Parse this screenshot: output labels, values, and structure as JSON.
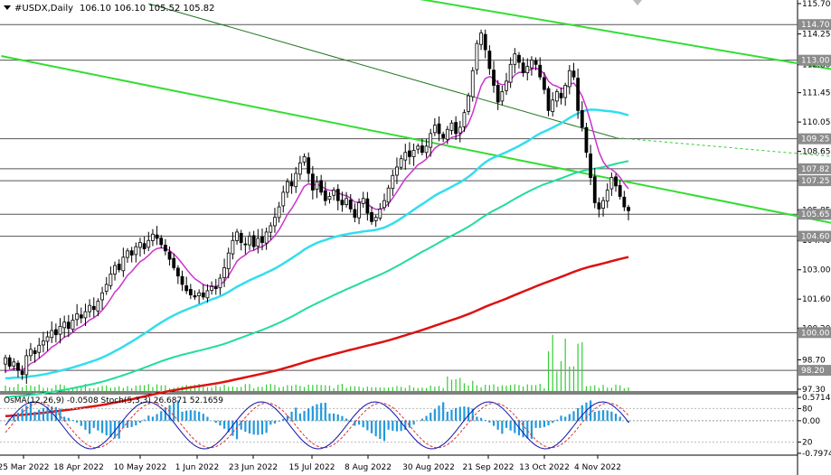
{
  "header": {
    "icon": "triangle-down-icon",
    "symbol": "#USDX,Daily",
    "ohlc": "106.10 106.10 105.52 105.82"
  },
  "subwindow": {
    "label": "OsMA(12,26,9) -0.0508  Stoch(5,3,3) 26.6871 52.1659",
    "ticks": [
      "0.5714",
      "80",
      "0.00",
      "20",
      "-0.7974"
    ]
  },
  "levels": [
    {
      "value": "114.70",
      "color": "#555555"
    },
    {
      "value": "113.00",
      "color": "#555555"
    },
    {
      "value": "109.25",
      "color": "#555555"
    },
    {
      "value": "107.82",
      "color": "#555555"
    },
    {
      "value": "107.25",
      "color": "#555555"
    },
    {
      "value": "105.65",
      "color": "#555555"
    },
    {
      "value": "104.60",
      "color": "#555555"
    },
    {
      "value": "100.00",
      "color": "#555555"
    },
    {
      "value": "98.20",
      "color": "#555555"
    }
  ],
  "colors": {
    "candle": "#000000",
    "ma_magenta": "#cc33cc",
    "ma_cyan": "#33ddee",
    "ma_teal": "#22dd99",
    "ma_red": "#dd1111",
    "channel": "#33dd33",
    "osma": "#2299dd",
    "stoch_main": "#1111aa",
    "stoch_signal": "#dd3333",
    "volume": "#33cc33"
  },
  "chart_data": {
    "type": "candlestick",
    "symbol": "#USDX",
    "timeframe": "Daily",
    "ylim": [
      97.3,
      115.7
    ],
    "y_ticks": [
      "115.70",
      "114.25",
      "112.80",
      "111.45",
      "110.05",
      "108.65",
      "107.25",
      "105.85",
      "104.40",
      "103.00",
      "101.60",
      "100.20",
      "98.70",
      "97.30"
    ],
    "x_ticks": [
      "25 Mar 2022",
      "18 Apr 2022",
      "10 May 2022",
      "1 Jun 2022",
      "23 Jun 2022",
      "15 Jul 2022",
      "8 Aug 2022",
      "30 Aug 2022",
      "21 Sep 2022",
      "13 Oct 2022",
      "4 Nov 2022"
    ],
    "closes": [
      98.8,
      98.4,
      98.6,
      98.2,
      98.0,
      98.9,
      99.2,
      99.0,
      99.4,
      99.6,
      99.8,
      100.1,
      99.9,
      100.3,
      100.5,
      100.2,
      100.6,
      100.9,
      100.7,
      101.0,
      101.3,
      101.1,
      101.5,
      101.9,
      102.3,
      102.8,
      103.2,
      103.0,
      103.6,
      103.9,
      103.7,
      104.1,
      104.3,
      104.0,
      104.4,
      104.7,
      104.5,
      104.2,
      103.9,
      103.5,
      103.1,
      102.7,
      102.3,
      102.0,
      101.8,
      101.7,
      101.9,
      101.7,
      102.0,
      102.2,
      102.1,
      102.6,
      103.1,
      103.8,
      104.4,
      104.8,
      104.3,
      104.2,
      104.6,
      104.1,
      104.5,
      104.3,
      104.8,
      105.1,
      105.5,
      106.0,
      106.7,
      107.2,
      107.0,
      107.6,
      108.1,
      108.4,
      107.6,
      106.8,
      107.2,
      106.7,
      106.3,
      106.5,
      106.8,
      106.3,
      106.1,
      106.4,
      105.9,
      105.5,
      106.2,
      106.4,
      105.7,
      105.3,
      105.5,
      105.9,
      106.3,
      106.9,
      107.5,
      107.9,
      108.3,
      108.6,
      108.4,
      108.7,
      108.9,
      108.6,
      108.9,
      109.5,
      109.9,
      109.5,
      109.3,
      109.7,
      110.0,
      109.5,
      109.8,
      110.5,
      111.3,
      112.5,
      113.8,
      114.3,
      113.5,
      112.6,
      111.8,
      111.0,
      111.5,
      112.0,
      112.8,
      113.3,
      112.9,
      112.4,
      112.7,
      113.0,
      112.8,
      112.2,
      111.6,
      110.6,
      111.1,
      111.5,
      111.2,
      111.8,
      112.5,
      112.2,
      110.6,
      109.8,
      108.6,
      107.4,
      106.2,
      105.9,
      106.3,
      106.8,
      107.4,
      107.0,
      106.5,
      106.0,
      105.82
    ],
    "ma_fast": [],
    "ma_50": [],
    "ma_100": [],
    "ma_200": [],
    "volume": [],
    "osma": [],
    "stoch": []
  }
}
